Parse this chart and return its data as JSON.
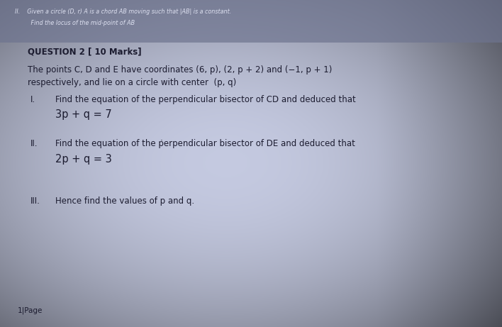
{
  "bg_color": "#8a90b8",
  "paper_color": "#c5c9de",
  "fig_width": 7.08,
  "fig_height": 4.61,
  "header_line1": "II.    Given a circle (D, r) A is a chord AB moving such that |AB| is a constant.",
  "header_line2": "         Find the locus of the mid-point of AB",
  "question_header": "QUESTION 2 [ 10 Marks]",
  "intro_line1": "The points C, D and E have coordinates (6, p), (2, p + 2) and (−1, p + 1)",
  "intro_line2": "respectively, and lie on a circle with center  (p, q)",
  "part_I_label": "I.",
  "part_I_text": "Find the equation of the perpendicular bisector of CD and deduced that",
  "part_I_eq": "3p + q = 7",
  "part_II_label": "II.",
  "part_II_text": "Find the equation of the ṗerpendicular bisector of DE and deduced that",
  "part_II_eq": "2p + q = 3",
  "part_III_label": "III.",
  "part_III_text": "Hence find the values of p and q.",
  "footer": "1|Page",
  "header_fontsize": 5.8,
  "question_header_fontsize": 8.5,
  "body_fontsize": 8.5,
  "label_fontsize": 8.5,
  "eq_fontsize": 10.5,
  "footer_fontsize": 7.5,
  "text_color": "#1c1c30",
  "header_text_color": "#222235",
  "shadow_color": "#7a80aa"
}
